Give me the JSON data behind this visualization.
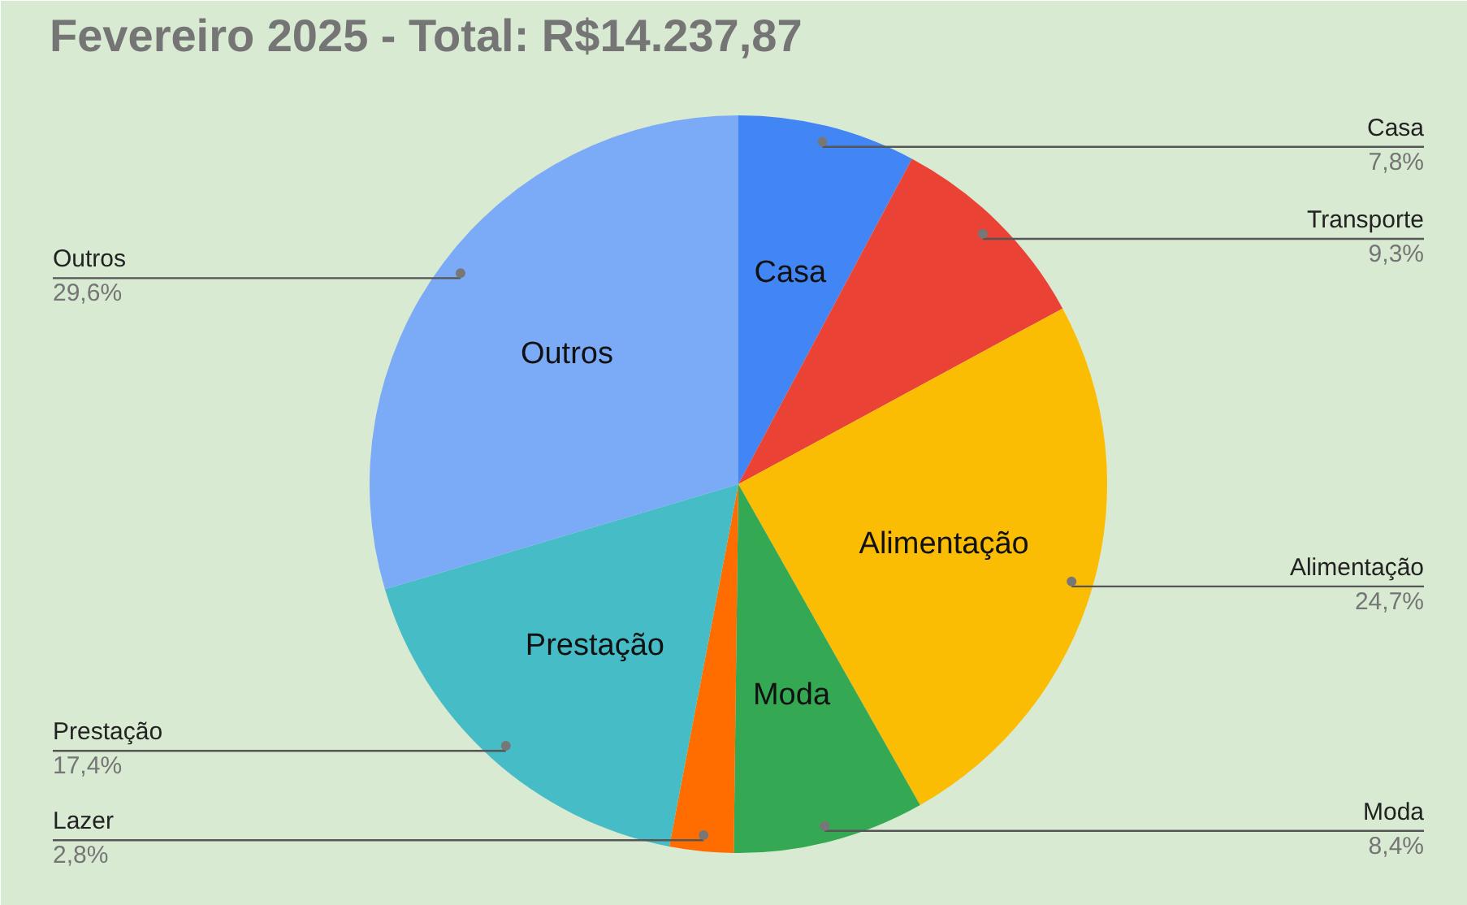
{
  "chart_data": {
    "type": "pie",
    "title": "Fevereiro 2025 - Total: R$14.237,87",
    "categories": [
      "Casa",
      "Transporte",
      "Alimentação",
      "Moda",
      "Lazer",
      "Prestação",
      "Outros"
    ],
    "values": [
      7.8,
      9.3,
      24.7,
      8.4,
      2.8,
      17.4,
      29.6
    ],
    "colors": [
      "#4285f4",
      "#ea4335",
      "#fbbc04",
      "#34a853",
      "#ff6d01",
      "#46bdc6",
      "#7baaf7"
    ],
    "value_labels": [
      "7,8%",
      "9,3%",
      "24,7%",
      "8,4%",
      "2,8%",
      "17,4%",
      "29,6%"
    ],
    "annotations": [
      {
        "text": "Casa",
        "x": "Casa"
      },
      {
        "text": "Alimentação",
        "x": "Alimentação"
      },
      {
        "text": "Moda",
        "x": "Moda"
      },
      {
        "text": "Prestação",
        "x": "Prestação"
      },
      {
        "text": "Outros",
        "x": "Outros"
      }
    ]
  }
}
